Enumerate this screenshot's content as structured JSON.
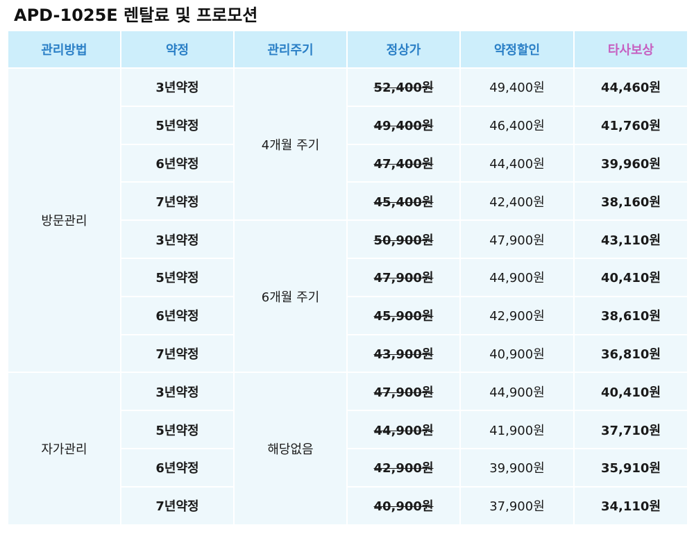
{
  "title": "APD-1025E 렌탈료 및 프로모션",
  "headers": {
    "method": "관리방법",
    "term": "약정",
    "cycle": "관리주기",
    "regular": "정상가",
    "discount": "약정할인",
    "competitor": "타사보상"
  },
  "groups": {
    "visit": "방문관리",
    "self": "자가관리",
    "cycle4": "4개월 주기",
    "cycle6": "6개월 주기",
    "none": "해당없음"
  },
  "rows": [
    {
      "term": "3년약정",
      "regular": "52,400원",
      "discount": "49,400원",
      "competitor": "44,460원"
    },
    {
      "term": "5년약정",
      "regular": "49,400원",
      "discount": "46,400원",
      "competitor": "41,760원"
    },
    {
      "term": "6년약정",
      "regular": "47,400원",
      "discount": "44,400원",
      "competitor": "39,960원"
    },
    {
      "term": "7년약정",
      "regular": "45,400원",
      "discount": "42,400원",
      "competitor": "38,160원"
    },
    {
      "term": "3년약정",
      "regular": "50,900원",
      "discount": "47,900원",
      "competitor": "43,110원"
    },
    {
      "term": "5년약정",
      "regular": "47,900원",
      "discount": "44,900원",
      "competitor": "40,410원"
    },
    {
      "term": "6년약정",
      "regular": "45,900원",
      "discount": "42,900원",
      "competitor": "38,610원"
    },
    {
      "term": "7년약정",
      "regular": "43,900원",
      "discount": "40,900원",
      "competitor": "36,810원"
    },
    {
      "term": "3년약정",
      "regular": "47,900원",
      "discount": "44,900원",
      "competitor": "40,410원"
    },
    {
      "term": "5년약정",
      "regular": "44,900원",
      "discount": "41,900원",
      "competitor": "37,710원"
    },
    {
      "term": "6년약정",
      "regular": "42,900원",
      "discount": "39,900원",
      "competitor": "35,910원"
    },
    {
      "term": "7년약정",
      "regular": "40,900원",
      "discount": "37,900원",
      "competitor": "34,110원"
    }
  ],
  "colors": {
    "header_bg": "#cdeefb",
    "header_text": "#2a7fc6",
    "competitor_text": "#c65fc0",
    "body_bg": "#eef8fc"
  }
}
